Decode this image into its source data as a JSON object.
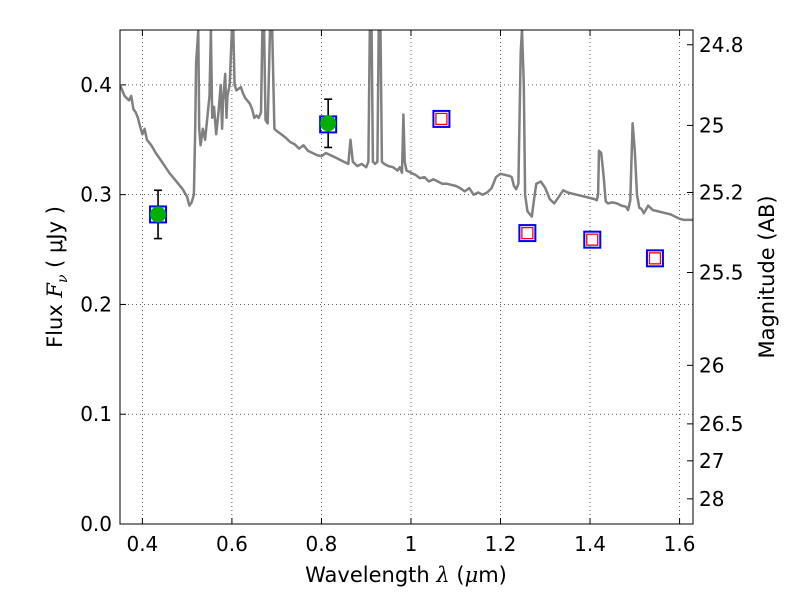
{
  "chart_data": {
    "type": "scatter",
    "xlabel": {
      "prefix": "Wavelength ",
      "symbol": "λ",
      "unit_open": " (",
      "unit_sym": "μ",
      "unit_rest": "m)"
    },
    "ylabel": {
      "prefix": "Flux ",
      "symbol": "F",
      "sub": "ν",
      "unit": " ( μJy )"
    },
    "y2label": "Magnitude (AB)",
    "xlim": [
      0.35,
      1.63
    ],
    "ylim": [
      0.0,
      0.45
    ],
    "grid": true,
    "x_ticks": [
      {
        "value": 0.4,
        "label": "0.4"
      },
      {
        "value": 0.6,
        "label": "0.6"
      },
      {
        "value": 0.8,
        "label": "0.8"
      },
      {
        "value": 1.0,
        "label": "1"
      },
      {
        "value": 1.2,
        "label": "1.2"
      },
      {
        "value": 1.4,
        "label": "1.4"
      },
      {
        "value": 1.6,
        "label": "1.6"
      }
    ],
    "y_ticks": [
      {
        "value": 0.0,
        "label": "0.0"
      },
      {
        "value": 0.1,
        "label": "0.1"
      },
      {
        "value": 0.2,
        "label": "0.2"
      },
      {
        "value": 0.3,
        "label": "0.3"
      },
      {
        "value": 0.4,
        "label": "0.4"
      }
    ],
    "mag_ticks": [
      {
        "value": 24.8,
        "label": "24.8"
      },
      {
        "value": 25.0,
        "label": "25"
      },
      {
        "value": 25.2,
        "label": "25.2"
      },
      {
        "value": 25.5,
        "label": "25.5"
      },
      {
        "value": 26.0,
        "label": "26"
      },
      {
        "value": 26.5,
        "label": "26.5"
      },
      {
        "value": 27.0,
        "label": "27"
      },
      {
        "value": 28.0,
        "label": "28"
      }
    ],
    "series": [
      {
        "kind": "model-spectrum",
        "color": "#808080",
        "points": [
          [
            0.35,
            0.4
          ],
          [
            0.36,
            0.39
          ],
          [
            0.37,
            0.386
          ],
          [
            0.375,
            0.39
          ],
          [
            0.38,
            0.378
          ],
          [
            0.385,
            0.375
          ],
          [
            0.39,
            0.37
          ],
          [
            0.395,
            0.362
          ],
          [
            0.4,
            0.355
          ],
          [
            0.405,
            0.36
          ],
          [
            0.41,
            0.35
          ],
          [
            0.42,
            0.345
          ],
          [
            0.43,
            0.338
          ],
          [
            0.44,
            0.332
          ],
          [
            0.45,
            0.326
          ],
          [
            0.46,
            0.32
          ],
          [
            0.47,
            0.315
          ],
          [
            0.48,
            0.31
          ],
          [
            0.49,
            0.305
          ],
          [
            0.5,
            0.298
          ],
          [
            0.505,
            0.29
          ],
          [
            0.51,
            0.293
          ],
          [
            0.515,
            0.3
          ],
          [
            0.518,
            0.36
          ],
          [
            0.52,
            0.42
          ],
          [
            0.525,
            0.45
          ],
          [
            0.527,
            0.36
          ],
          [
            0.53,
            0.345
          ],
          [
            0.535,
            0.36
          ],
          [
            0.54,
            0.35
          ],
          [
            0.545,
            0.37
          ],
          [
            0.55,
            0.39
          ],
          [
            0.553,
            0.45
          ],
          [
            0.556,
            0.37
          ],
          [
            0.56,
            0.38
          ],
          [
            0.565,
            0.355
          ],
          [
            0.57,
            0.375
          ],
          [
            0.575,
            0.4
          ],
          [
            0.578,
            0.36
          ],
          [
            0.58,
            0.385
          ],
          [
            0.585,
            0.41
          ],
          [
            0.588,
            0.37
          ],
          [
            0.59,
            0.39
          ],
          [
            0.595,
            0.4
          ],
          [
            0.6,
            0.45
          ],
          [
            0.603,
            0.45
          ],
          [
            0.606,
            0.4
          ],
          [
            0.61,
            0.395
          ],
          [
            0.62,
            0.398
          ],
          [
            0.625,
            0.392
          ],
          [
            0.63,
            0.388
          ],
          [
            0.64,
            0.383
          ],
          [
            0.645,
            0.378
          ],
          [
            0.65,
            0.37
          ],
          [
            0.655,
            0.372
          ],
          [
            0.66,
            0.37
          ],
          [
            0.665,
            0.375
          ],
          [
            0.668,
            0.45
          ],
          [
            0.672,
            0.45
          ],
          [
            0.675,
            0.368
          ],
          [
            0.68,
            0.365
          ],
          [
            0.685,
            0.45
          ],
          [
            0.69,
            0.45
          ],
          [
            0.695,
            0.36
          ],
          [
            0.7,
            0.358
          ],
          [
            0.71,
            0.355
          ],
          [
            0.72,
            0.352
          ],
          [
            0.73,
            0.348
          ],
          [
            0.74,
            0.346
          ],
          [
            0.75,
            0.342
          ],
          [
            0.76,
            0.345
          ],
          [
            0.77,
            0.34
          ],
          [
            0.78,
            0.338
          ],
          [
            0.79,
            0.336
          ],
          [
            0.8,
            0.335
          ],
          [
            0.81,
            0.338
          ],
          [
            0.82,
            0.336
          ],
          [
            0.83,
            0.334
          ],
          [
            0.84,
            0.332
          ],
          [
            0.85,
            0.33
          ],
          [
            0.86,
            0.328
          ],
          [
            0.865,
            0.35
          ],
          [
            0.87,
            0.33
          ],
          [
            0.88,
            0.326
          ],
          [
            0.89,
            0.328
          ],
          [
            0.9,
            0.325
          ],
          [
            0.905,
            0.33
          ],
          [
            0.908,
            0.45
          ],
          [
            0.912,
            0.45
          ],
          [
            0.915,
            0.33
          ],
          [
            0.92,
            0.328
          ],
          [
            0.925,
            0.33
          ],
          [
            0.928,
            0.45
          ],
          [
            0.932,
            0.45
          ],
          [
            0.935,
            0.33
          ],
          [
            0.94,
            0.328
          ],
          [
            0.95,
            0.326
          ],
          [
            0.96,
            0.325
          ],
          [
            0.97,
            0.322
          ],
          [
            0.975,
            0.325
          ],
          [
            0.98,
            0.32
          ],
          [
            0.983,
            0.373
          ],
          [
            0.986,
            0.33
          ],
          [
            0.99,
            0.322
          ],
          [
            1.0,
            0.32
          ],
          [
            1.01,
            0.318
          ],
          [
            1.02,
            0.315
          ],
          [
            1.03,
            0.316
          ],
          [
            1.04,
            0.312
          ],
          [
            1.05,
            0.314
          ],
          [
            1.06,
            0.312
          ],
          [
            1.07,
            0.31
          ],
          [
            1.08,
            0.31
          ],
          [
            1.09,
            0.309
          ],
          [
            1.1,
            0.308
          ],
          [
            1.11,
            0.306
          ],
          [
            1.12,
            0.303
          ],
          [
            1.13,
            0.306
          ],
          [
            1.14,
            0.3
          ],
          [
            1.15,
            0.302
          ],
          [
            1.16,
            0.3
          ],
          [
            1.17,
            0.302
          ],
          [
            1.18,
            0.306
          ],
          [
            1.19,
            0.316
          ],
          [
            1.2,
            0.319
          ],
          [
            1.21,
            0.318
          ],
          [
            1.22,
            0.317
          ],
          [
            1.225,
            0.316
          ],
          [
            1.23,
            0.308
          ],
          [
            1.235,
            0.305
          ],
          [
            1.24,
            0.31
          ],
          [
            1.245,
            0.43
          ],
          [
            1.248,
            0.45
          ],
          [
            1.252,
            0.4
          ],
          [
            1.255,
            0.3
          ],
          [
            1.26,
            0.285
          ],
          [
            1.27,
            0.28
          ],
          [
            1.275,
            0.296
          ],
          [
            1.28,
            0.31
          ],
          [
            1.29,
            0.312
          ],
          [
            1.3,
            0.306
          ],
          [
            1.31,
            0.296
          ],
          [
            1.32,
            0.292
          ],
          [
            1.33,
            0.298
          ],
          [
            1.34,
            0.304
          ],
          [
            1.35,
            0.302
          ],
          [
            1.36,
            0.301
          ],
          [
            1.37,
            0.3
          ],
          [
            1.38,
            0.299
          ],
          [
            1.39,
            0.298
          ],
          [
            1.4,
            0.297
          ],
          [
            1.41,
            0.296
          ],
          [
            1.415,
            0.295
          ],
          [
            1.418,
            0.3
          ],
          [
            1.42,
            0.34
          ],
          [
            1.425,
            0.338
          ],
          [
            1.43,
            0.318
          ],
          [
            1.435,
            0.294
          ],
          [
            1.44,
            0.292
          ],
          [
            1.45,
            0.293
          ],
          [
            1.46,
            0.292
          ],
          [
            1.47,
            0.29
          ],
          [
            1.48,
            0.289
          ],
          [
            1.485,
            0.286
          ],
          [
            1.49,
            0.295
          ],
          [
            1.495,
            0.365
          ],
          [
            1.5,
            0.34
          ],
          [
            1.505,
            0.3
          ],
          [
            1.51,
            0.288
          ],
          [
            1.515,
            0.287
          ],
          [
            1.52,
            0.283
          ],
          [
            1.53,
            0.29
          ],
          [
            1.54,
            0.286
          ],
          [
            1.55,
            0.285
          ],
          [
            1.56,
            0.284
          ],
          [
            1.57,
            0.283
          ],
          [
            1.58,
            0.282
          ],
          [
            1.59,
            0.28
          ],
          [
            1.6,
            0.278
          ],
          [
            1.61,
            0.277
          ],
          [
            1.62,
            0.277
          ],
          [
            1.63,
            0.277
          ]
        ]
      },
      {
        "kind": "model-photometry",
        "box_color": "#0000ff",
        "points": [
          [
            0.435,
            0.282
          ],
          [
            0.815,
            0.364
          ],
          [
            1.068,
            0.369
          ],
          [
            1.26,
            0.265
          ],
          [
            1.405,
            0.259
          ],
          [
            1.545,
            0.242
          ]
        ]
      },
      {
        "kind": "observed-detections",
        "marker_color": "#00b000",
        "points": [
          [
            0.435,
            0.282,
            0.022
          ],
          [
            0.815,
            0.365,
            0.022
          ]
        ]
      },
      {
        "kind": "observed-limits",
        "marker_color": "#ff0000",
        "points": [
          [
            1.068,
            0.369
          ],
          [
            1.26,
            0.265
          ],
          [
            1.405,
            0.259
          ],
          [
            1.545,
            0.242
          ]
        ]
      }
    ]
  }
}
